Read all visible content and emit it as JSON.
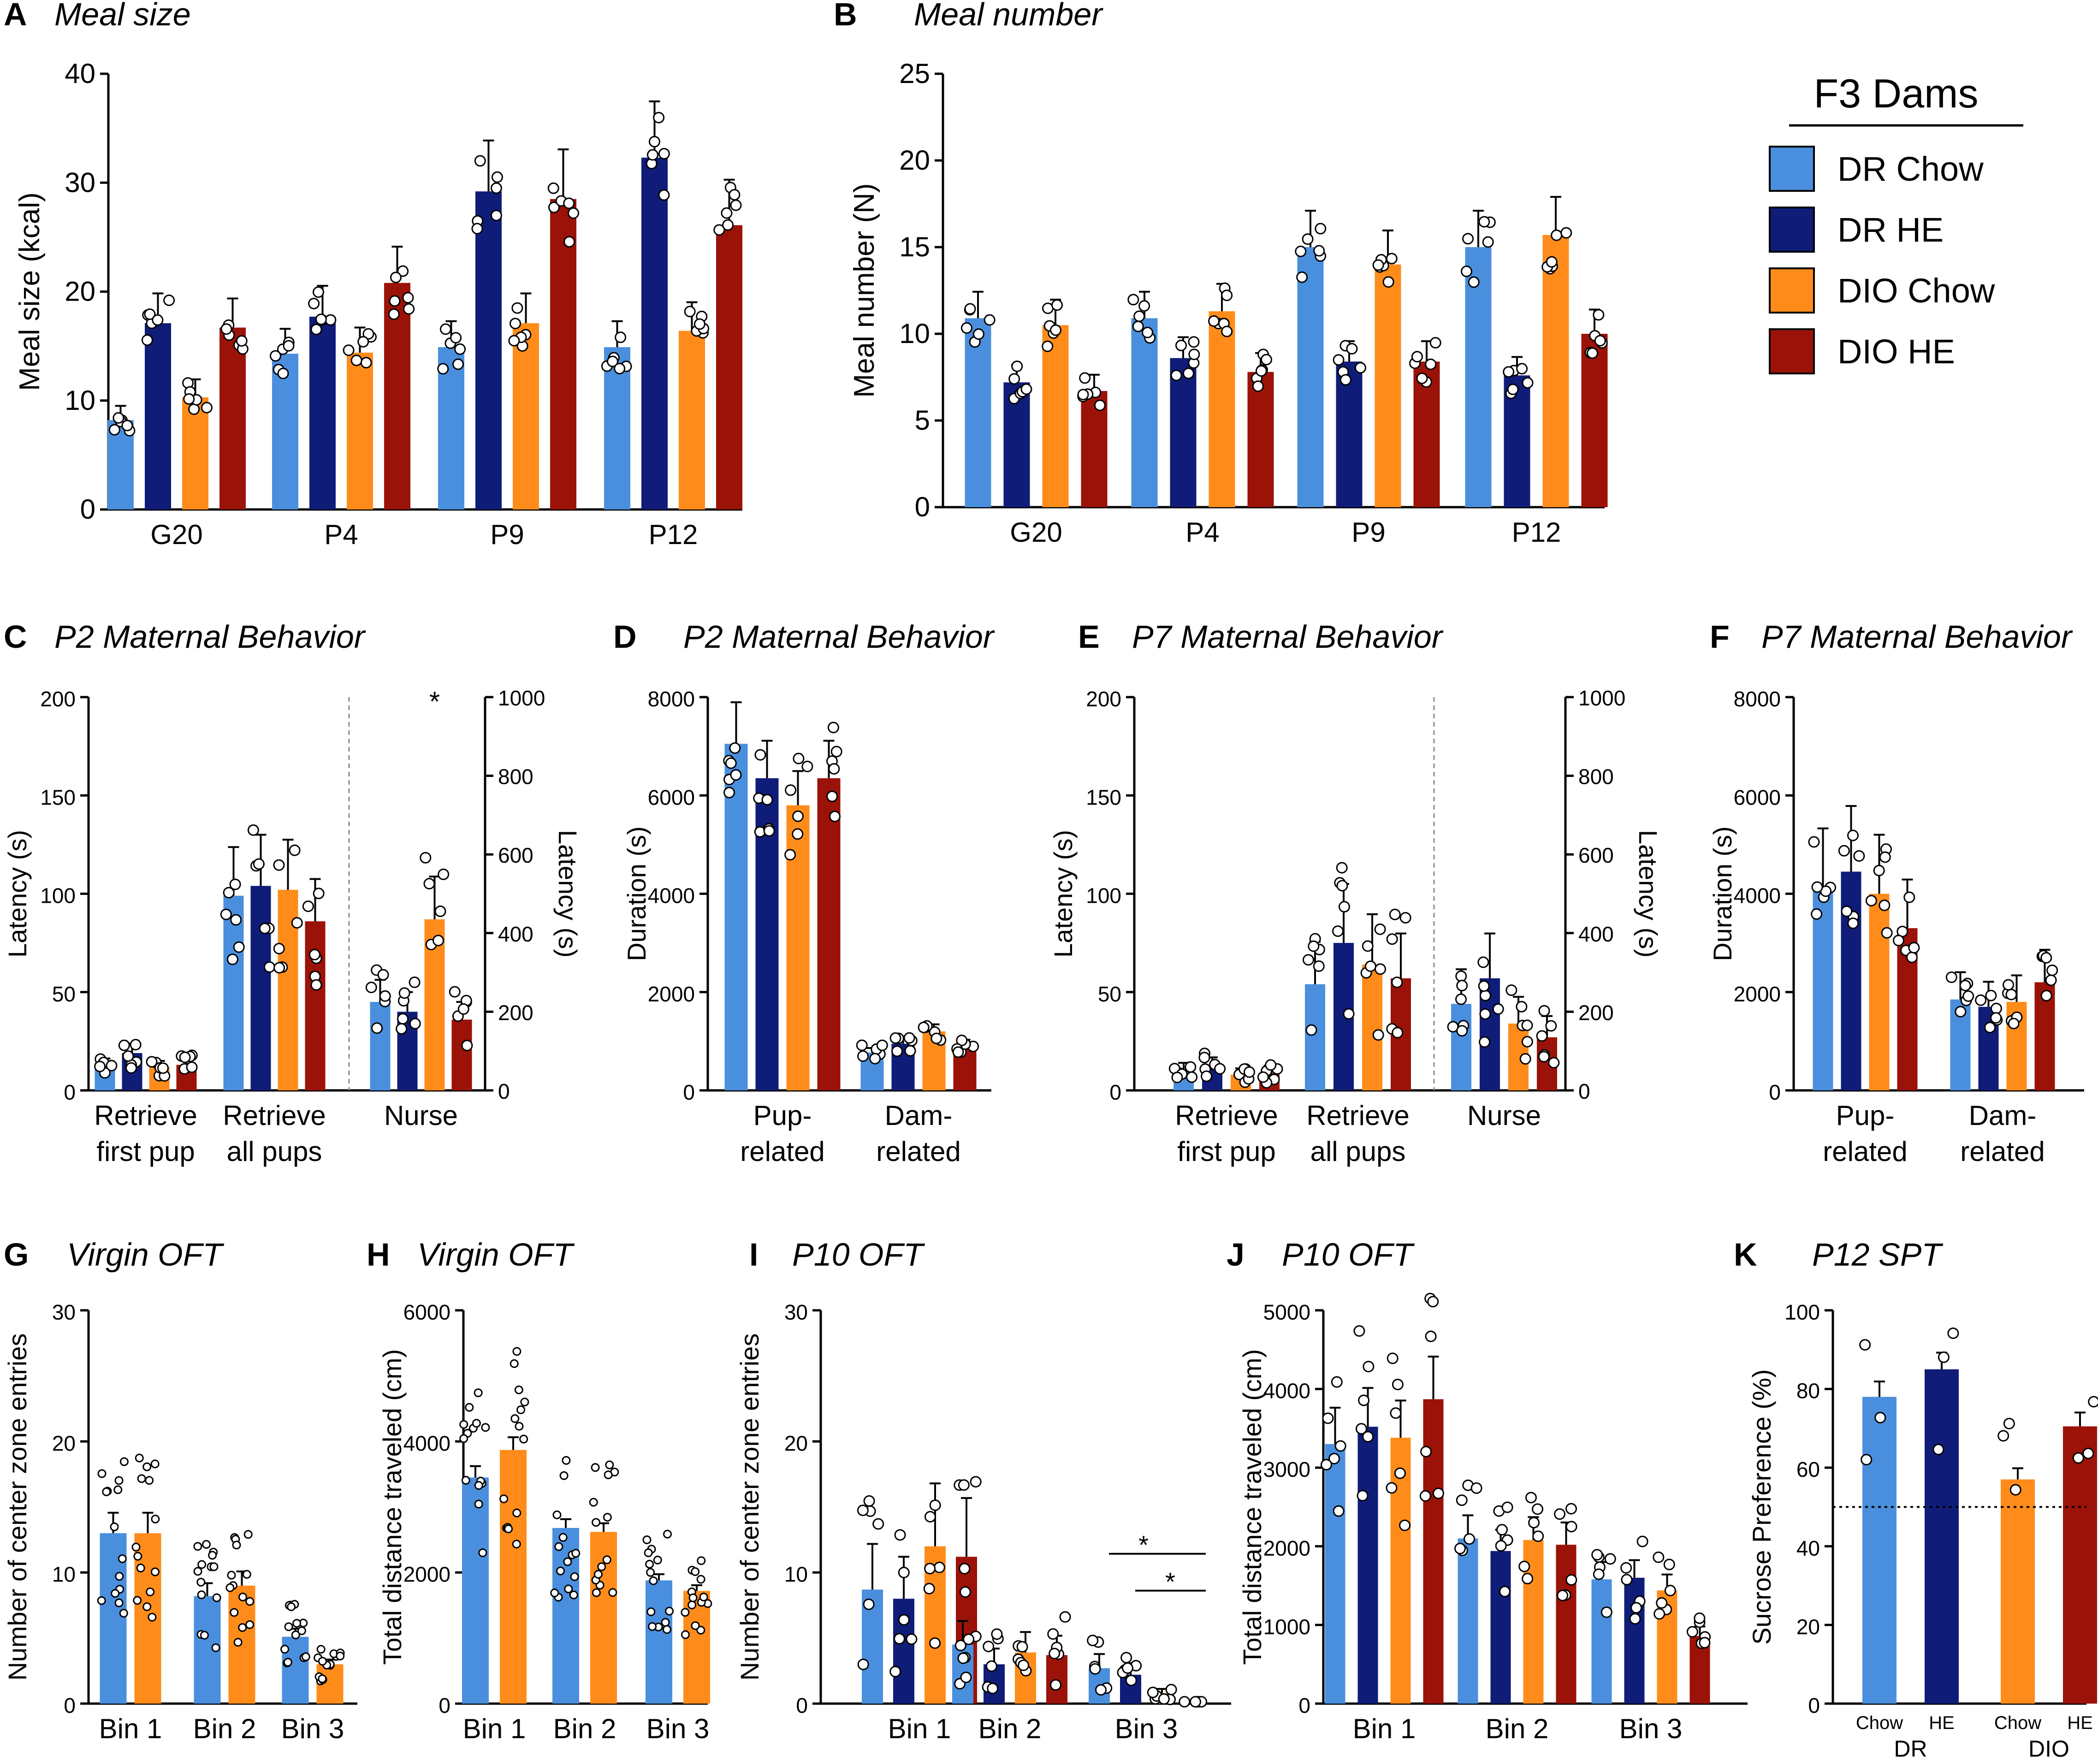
{
  "colors": {
    "dr_chow": "#4a8fdd",
    "dr_he": "#0f1c78",
    "dio_chow": "#ff8c1a",
    "dio_he": "#9b1208"
  },
  "legend": {
    "title": "F3 Dams",
    "items": [
      {
        "label": "DR Chow",
        "color": "#4a8fdd"
      },
      {
        "label": "DR HE",
        "color": "#0f1c78"
      },
      {
        "label": "DIO Chow",
        "color": "#ff8c1a"
      },
      {
        "label": "DIO HE",
        "color": "#9b1208"
      }
    ]
  },
  "chart_data": [
    {
      "letter": "A",
      "title": "Meal size",
      "type": "bar",
      "ylabel": "Meal size (kcal)",
      "ylim": [
        0,
        40
      ],
      "yticks": [
        "0",
        "10",
        "20",
        "30",
        "40"
      ],
      "groups": [
        {
          "label": "G20",
          "values": [
            8.2,
            17.1,
            10.3,
            16.7
          ]
        },
        {
          "label": "P4",
          "values": [
            14.3,
            17.7,
            14.4,
            20.8
          ]
        },
        {
          "label": "P9",
          "values": [
            14.9,
            29.2,
            17.1,
            28.5
          ]
        },
        {
          "label": "P12",
          "values": [
            14.9,
            32.3,
            16.4,
            26.1
          ]
        }
      ]
    },
    {
      "letter": "B",
      "title": "Meal number",
      "type": "bar",
      "ylabel": "Meal number (N)",
      "ylim": [
        0,
        25
      ],
      "yticks": [
        "0",
        "5",
        "10",
        "15",
        "20",
        "25"
      ],
      "groups": [
        {
          "label": "G20",
          "values": [
            10.9,
            7.2,
            10.5,
            6.7
          ]
        },
        {
          "label": "P4",
          "values": [
            10.9,
            8.6,
            11.3,
            7.8
          ]
        },
        {
          "label": "P9",
          "values": [
            15.0,
            8.4,
            14.0,
            8.4
          ]
        },
        {
          "label": "P12",
          "values": [
            15.0,
            7.6,
            15.7,
            10.0
          ]
        }
      ]
    },
    {
      "letter": "C",
      "title": "P2 Maternal Behavior",
      "type": "bar",
      "ylabel": "Latency (s)",
      "ylim": [
        0,
        200
      ],
      "yticks": [
        "0",
        "50",
        "100",
        "150",
        "200"
      ],
      "ylabel_right": "Latency (s)",
      "yticks_right": [
        "0",
        "200",
        "400",
        "600",
        "800",
        "1000"
      ],
      "groups": [
        {
          "label": "Retrieve first pup",
          "values": [
            13,
            19,
            12,
            13
          ]
        },
        {
          "label": "Retrieve all pups",
          "values": [
            99,
            104,
            102,
            86
          ]
        },
        {
          "label": "Nurse",
          "values": [
            45,
            40,
            87,
            36
          ],
          "note": "right axis, 0-1000 s",
          "star": "*"
        }
      ]
    },
    {
      "letter": "D",
      "title": "P2 Maternal Behavior",
      "type": "bar",
      "ylabel": "Duration (s)",
      "ylim": [
        0,
        8000
      ],
      "yticks": [
        "0",
        "2000",
        "4000",
        "6000",
        "8000"
      ],
      "groups": [
        {
          "label": "Pup- related",
          "values": [
            7050,
            6350,
            5800,
            6350
          ]
        },
        {
          "label": "Dam- related",
          "values": [
            770,
            950,
            1200,
            920
          ]
        }
      ]
    },
    {
      "letter": "E",
      "title": "P7 Maternal Behavior",
      "type": "bar",
      "ylabel": "Latency (s)",
      "ylim": [
        0,
        200
      ],
      "yticks": [
        "0",
        "50",
        "100",
        "150",
        "200"
      ],
      "ylabel_right": "Latency (s)",
      "yticks_right": [
        "0",
        "200",
        "400",
        "600",
        "800",
        "1000"
      ],
      "groups": [
        {
          "label": "Retrieve first pup",
          "values": [
            10,
            12,
            8,
            9
          ]
        },
        {
          "label": "Retrieve all pups",
          "values": [
            54,
            75,
            64,
            57
          ]
        },
        {
          "label": "Nurse",
          "values": [
            44,
            57,
            34,
            27
          ],
          "note": "right axis, 0-1000 s"
        }
      ]
    },
    {
      "letter": "F",
      "title": "P7 Maternal Behavior",
      "type": "bar",
      "ylabel": "Duration (s)",
      "ylim": [
        0,
        8000
      ],
      "yticks": [
        "0",
        "2000",
        "4000",
        "6000",
        "8000"
      ],
      "groups": [
        {
          "label": "Pup- related",
          "values": [
            4100,
            4450,
            4000,
            3300
          ]
        },
        {
          "label": "Dam- related",
          "values": [
            1850,
            1700,
            1800,
            2200
          ]
        }
      ]
    },
    {
      "letter": "G",
      "title": "Virgin OFT",
      "type": "bar",
      "ylabel": "Number of center zone entries",
      "ylim": [
        0,
        30
      ],
      "yticks": [
        "0",
        "10",
        "20",
        "30"
      ],
      "groups": [
        {
          "label": "Bin 1",
          "values": [
            13.0,
            13.0
          ]
        },
        {
          "label": "Bin 2",
          "values": [
            8.2,
            9.0
          ]
        },
        {
          "label": "Bin 3",
          "values": [
            5.1,
            3.0
          ]
        }
      ]
    },
    {
      "letter": "H",
      "title": "Virgin OFT",
      "type": "bar",
      "ylabel": "Total distance traveled (cm)",
      "ylim": [
        0,
        6000
      ],
      "yticks": [
        "0",
        "2000",
        "4000",
        "6000"
      ],
      "groups": [
        {
          "label": "Bin 1",
          "values": [
            3450,
            3870
          ]
        },
        {
          "label": "Bin 2",
          "values": [
            2680,
            2620
          ]
        },
        {
          "label": "Bin 3",
          "values": [
            1880,
            1720
          ]
        }
      ]
    },
    {
      "letter": "I",
      "title": "P10 OFT",
      "type": "bar",
      "ylabel": "Number of center zone entries",
      "ylim": [
        0,
        30
      ],
      "yticks": [
        "0",
        "10",
        "20",
        "30"
      ],
      "groups": [
        {
          "label": "Bin 1",
          "values": [
            8.7,
            8.0,
            12.0,
            11.2
          ]
        },
        {
          "label": "Bin 2",
          "values": [
            4.5,
            3.0,
            3.9,
            3.7
          ]
        },
        {
          "label": "Bin 3",
          "values": [
            2.7,
            2.2,
            0.8,
            0.1
          ]
        }
      ],
      "annotations": [
        "*",
        "*"
      ]
    },
    {
      "letter": "J",
      "title": "P10 OFT",
      "type": "bar",
      "ylabel": "Total distance traveled (cm)",
      "ylim": [
        0,
        5000
      ],
      "yticks": [
        "0",
        "1000",
        "2000",
        "3000",
        "4000",
        "5000"
      ],
      "groups": [
        {
          "label": "Bin 1",
          "values": [
            3300,
            3520,
            3380,
            3870
          ]
        },
        {
          "label": "Bin 2",
          "values": [
            2100,
            1940,
            2080,
            2020
          ]
        },
        {
          "label": "Bin 3",
          "values": [
            1580,
            1600,
            1440,
            860
          ]
        }
      ]
    },
    {
      "letter": "K",
      "title": "P12 SPT",
      "type": "bar",
      "ylabel": "Sucrose Preference (%)",
      "ylim": [
        0,
        100
      ],
      "yticks": [
        "0",
        "20",
        "40",
        "60",
        "80",
        "100"
      ],
      "groups": [
        {
          "label": "DR",
          "sublabels": [
            "Chow",
            "HE"
          ],
          "values": [
            78,
            85
          ]
        },
        {
          "label": "DIO",
          "sublabels": [
            "Chow",
            "HE"
          ],
          "values": [
            57,
            70.5
          ]
        }
      ],
      "reference_line": 50
    }
  ]
}
